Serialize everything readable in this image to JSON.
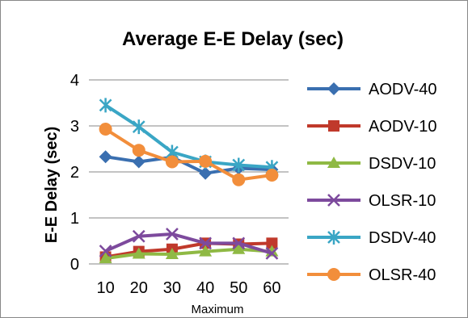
{
  "chart_data": {
    "type": "line",
    "title": "Average E-E Delay (sec)",
    "xlabel": "Maximum",
    "ylabel": "E-E Delay (sec)",
    "categories": [
      "10",
      "20",
      "30",
      "40",
      "50",
      "60"
    ],
    "yticks": [
      0,
      1,
      2,
      3,
      4
    ],
    "ylim": [
      0,
      4
    ],
    "grid": "horizontal",
    "legend_position": "right",
    "series": [
      {
        "name": "AODV-40",
        "color": "#3a6fb0",
        "marker": "diamond",
        "values": [
          2.33,
          2.22,
          2.32,
          1.97,
          2.08,
          2.05
        ]
      },
      {
        "name": "AODV-10",
        "color": "#c0392b",
        "marker": "square",
        "values": [
          0.15,
          0.27,
          0.32,
          0.45,
          0.43,
          0.45
        ]
      },
      {
        "name": "DSDV-10",
        "color": "#8fb944",
        "marker": "triangle",
        "values": [
          0.12,
          0.22,
          0.21,
          0.27,
          0.32,
          0.27
        ]
      },
      {
        "name": "OLSR-10",
        "color": "#7d4a9d",
        "marker": "x",
        "values": [
          0.28,
          0.6,
          0.65,
          0.45,
          0.45,
          0.23
        ]
      },
      {
        "name": "DSDV-40",
        "color": "#3aa6c5",
        "marker": "star",
        "values": [
          3.45,
          2.98,
          2.43,
          2.22,
          2.15,
          2.1
        ]
      },
      {
        "name": "OLSR-40",
        "color": "#f28e3b",
        "marker": "circle",
        "values": [
          2.93,
          2.47,
          2.22,
          2.23,
          1.83,
          1.93
        ]
      }
    ]
  }
}
